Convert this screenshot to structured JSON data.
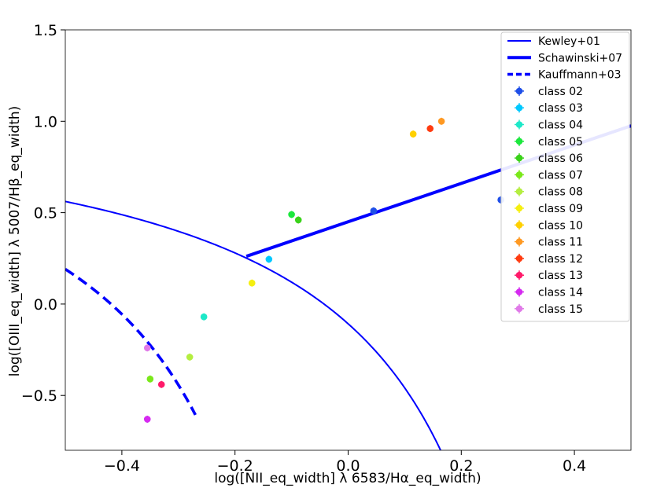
{
  "chart_data": {
    "type": "scatter",
    "xlabel": "log([NII_eq_width] λ 6583/Hα_eq_width)",
    "ylabel": "log([OIII_eq_width] λ 5007/Hβ_eq_width)",
    "xlim": [
      -0.5,
      0.5
    ],
    "ylim": [
      -0.8,
      1.5
    ],
    "x_ticks": [
      -0.4,
      -0.2,
      0.0,
      0.2,
      0.4
    ],
    "x_tick_labels": [
      "−0.4",
      "−0.2",
      "0.0",
      "0.2",
      "0.4"
    ],
    "y_ticks": [
      -0.5,
      0.0,
      0.5,
      1.0,
      1.5
    ],
    "y_tick_labels": [
      "−0.5",
      "0.0",
      "0.5",
      "1.0",
      "1.5"
    ],
    "grid": false,
    "legend_position": "top-right",
    "lines": [
      {
        "name": "Kewley+01",
        "color": "#0000ff",
        "style": "solid-thin",
        "formula": "0.61/(x-0.47)+1.19"
      },
      {
        "name": "Schawinski+07",
        "color": "#0000ff",
        "style": "solid-thick",
        "x_start": -0.18,
        "slope": 1.05,
        "intercept": 0.45
      },
      {
        "name": "Kauffmann+03",
        "color": "#0000ff",
        "style": "dashed",
        "formula": "0.61/(x-0.05)+1.3"
      }
    ],
    "series": [
      {
        "name": "class 02",
        "color": "#1f4fe8",
        "points": [
          [
            0.045,
            0.51
          ],
          [
            0.27,
            0.57
          ]
        ]
      },
      {
        "name": "class 03",
        "color": "#00c8ff",
        "points": [
          [
            -0.14,
            0.245
          ]
        ]
      },
      {
        "name": "class 04",
        "color": "#1de8c8",
        "points": [
          [
            -0.255,
            -0.07
          ]
        ]
      },
      {
        "name": "class 05",
        "color": "#1be83c",
        "points": [
          [
            -0.1,
            0.49
          ]
        ]
      },
      {
        "name": "class 06",
        "color": "#3ad21a",
        "points": [
          [
            -0.088,
            0.46
          ]
        ]
      },
      {
        "name": "class 07",
        "color": "#7ae81a",
        "points": [
          [
            -0.35,
            -0.41
          ]
        ]
      },
      {
        "name": "class 08",
        "color": "#b4ee40",
        "points": [
          [
            -0.28,
            -0.29
          ]
        ]
      },
      {
        "name": "class 09",
        "color": "#f5ef10",
        "points": [
          [
            -0.17,
            0.115
          ]
        ]
      },
      {
        "name": "class 10",
        "color": "#ffd000",
        "points": [
          [
            0.115,
            0.93
          ]
        ]
      },
      {
        "name": "class 11",
        "color": "#ff9922",
        "points": [
          [
            0.165,
            1.0
          ]
        ]
      },
      {
        "name": "class 12",
        "color": "#ff3b10",
        "points": [
          [
            0.145,
            0.96
          ]
        ]
      },
      {
        "name": "class 13",
        "color": "#ff1a6a",
        "points": [
          [
            -0.33,
            -0.44
          ]
        ]
      },
      {
        "name": "class 14",
        "color": "#d52af0",
        "points": [
          [
            -0.355,
            -0.63
          ]
        ]
      },
      {
        "name": "class 15",
        "color": "#e07ae8",
        "points": [
          [
            -0.355,
            -0.24
          ]
        ]
      }
    ]
  }
}
